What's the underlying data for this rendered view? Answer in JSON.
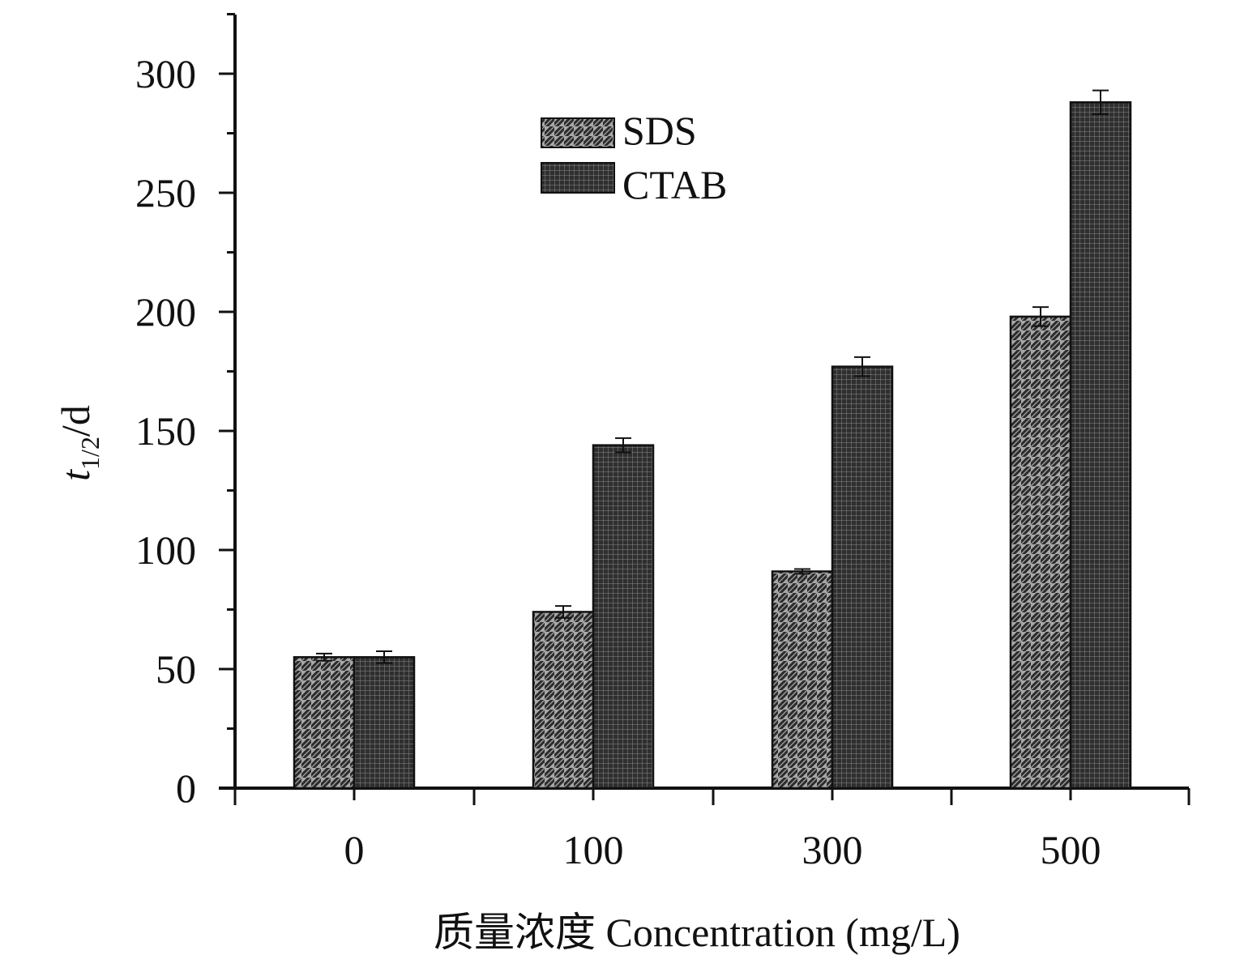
{
  "chart_data": {
    "type": "bar",
    "title": "",
    "xlabel": "质量浓度 Concentration (mg/L)",
    "ylabel": {
      "main": "t",
      "sub": "1/2",
      "suffix": "/d"
    },
    "categories": [
      "0",
      "100",
      "300",
      "500"
    ],
    "series": [
      {
        "name": "SDS",
        "values": [
          55,
          74,
          91,
          198
        ],
        "errors": [
          1.5,
          2.5,
          1,
          4
        ],
        "pattern": "diagonal-hatch"
      },
      {
        "name": "CTAB",
        "values": [
          55,
          144,
          177,
          288
        ],
        "errors": [
          2.5,
          3,
          4,
          5
        ],
        "pattern": "crosshatch"
      }
    ],
    "ylim": [
      0,
      325
    ],
    "yticks": [
      "0",
      "50",
      "100",
      "150",
      "200",
      "250",
      "300"
    ],
    "grid": false,
    "legend_position": "top-center"
  }
}
